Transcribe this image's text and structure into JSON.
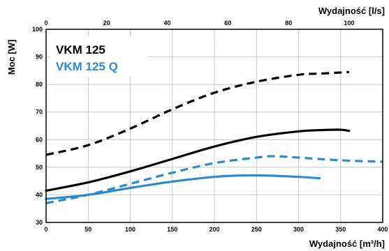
{
  "chart_data": {
    "type": "line",
    "ylabel": "Moc [W]",
    "xlabel_bottom": "Wydajność [m³/h]",
    "xlabel_top": "Wydajność [l/s]",
    "xlim_bottom": [
      0,
      400
    ],
    "xlim_top": [
      0,
      111.1
    ],
    "ylim": [
      30,
      100
    ],
    "xticks_bottom": [
      0,
      50,
      100,
      150,
      200,
      250,
      300,
      350,
      400
    ],
    "xticks_top": [
      0,
      20,
      40,
      60,
      80,
      100
    ],
    "yticks": [
      30,
      40,
      50,
      60,
      70,
      80,
      90,
      100
    ],
    "grid": true,
    "legend": [
      {
        "label": "VKM 125",
        "color": "#000000"
      },
      {
        "label": "VKM 125 Q",
        "color": "#2b8ad1"
      }
    ],
    "series": [
      {
        "name": "VKM 125",
        "color": "#000000",
        "style": "solid",
        "x": [
          0,
          50,
          100,
          150,
          200,
          250,
          300,
          330,
          350,
          360
        ],
        "y": [
          41.5,
          44.5,
          48.5,
          53,
          57.5,
          61,
          63,
          63.5,
          63.6,
          63.2
        ]
      },
      {
        "name": "VKM 125",
        "color": "#000000",
        "style": "dashed",
        "x": [
          0,
          50,
          100,
          150,
          200,
          250,
          300,
          330,
          360
        ],
        "y": [
          54.5,
          58,
          64,
          71,
          77,
          81,
          83.5,
          84,
          84.5
        ]
      },
      {
        "name": "VKM 125 Q",
        "color": "#2b8ad1",
        "style": "solid",
        "x": [
          0,
          50,
          100,
          150,
          200,
          230,
          260,
          300,
          325
        ],
        "y": [
          38.5,
          40,
          42.5,
          44.8,
          46.5,
          47,
          47,
          46.5,
          46
        ]
      },
      {
        "name": "VKM 125 Q",
        "color": "#2b8ad1",
        "style": "dashed",
        "x": [
          0,
          50,
          100,
          150,
          200,
          250,
          270,
          300,
          350,
          400
        ],
        "y": [
          37,
          40,
          44,
          48,
          51.5,
          53.5,
          54,
          53.5,
          52.5,
          52
        ]
      }
    ]
  }
}
